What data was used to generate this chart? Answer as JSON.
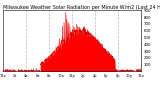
{
  "title": "Milwaukee Weather Solar Radiation per Minute W/m2 (Last 24 Hours)",
  "title_fontsize": 3.5,
  "bg_color": "#ffffff",
  "plot_bg_color": "#ffffff",
  "fill_color": "#ff0000",
  "line_color": "#dd0000",
  "grid_color": "#bbbbbb",
  "ylim": [
    0,
    900
  ],
  "yticks": [
    100,
    200,
    300,
    400,
    500,
    600,
    700,
    800,
    900
  ],
  "ytick_fontsize": 2.8,
  "xtick_fontsize": 2.5,
  "num_points": 1440,
  "vgrid_positions": [
    4,
    8,
    12,
    16,
    20
  ],
  "figsize": [
    1.6,
    0.87
  ],
  "dpi": 100
}
